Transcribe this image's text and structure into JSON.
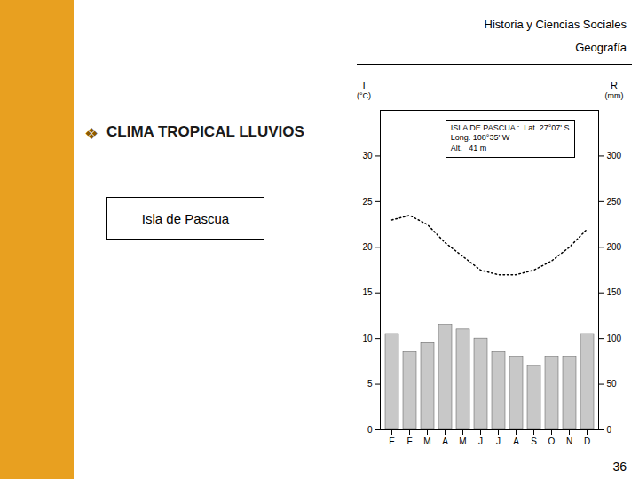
{
  "chart_data": {
    "type": "bar",
    "title": "ISLA DE PASCUA :  Lat. 27°07' S",
    "subtitle": [
      "Long. 108°35' W",
      "Alt.   41 m"
    ],
    "ylabel": [
      "T",
      "(°C)"
    ],
    "y2label": [
      "R",
      "(mm)"
    ],
    "annotations": [
      "Historia y Ciencias Sociales",
      "Geografía",
      "❖",
      "CLIMA TROPICAL LLUVIOS",
      "Isla de Pascua",
      "36"
    ],
    "categories": [
      "E",
      "F",
      "M",
      "A",
      "M",
      "J",
      "J",
      "A",
      "S",
      "O",
      "N",
      "D"
    ],
    "series": [
      {
        "type": "bar",
        "axis": "y2",
        "color": "#c8c8c8",
        "values": [
          105,
          85,
          95,
          115,
          110,
          100,
          85,
          80,
          70,
          80,
          80,
          105
        ]
      },
      {
        "type": "line",
        "color": "#000000",
        "line_style": "dotted",
        "values": [
          23.0,
          23.5,
          22.5,
          20.5,
          19.0,
          17.5,
          17.0,
          17.0,
          17.5,
          18.5,
          20.0,
          22.0
        ]
      }
    ],
    "ylim": [
      0,
      35
    ],
    "yticks": [
      0,
      5,
      10,
      15,
      20,
      25,
      30
    ],
    "y2lim": [
      0,
      350
    ],
    "y2ticks": [
      0,
      50,
      100,
      150,
      200,
      250,
      300
    ],
    "grid": false
  }
}
